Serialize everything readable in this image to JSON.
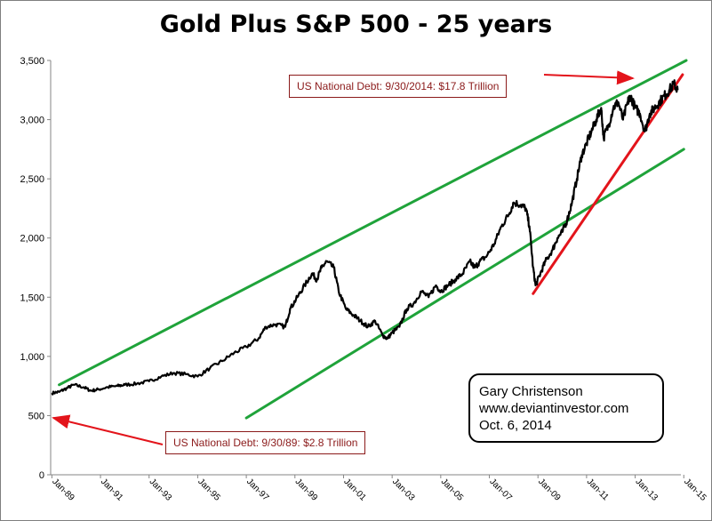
{
  "chart_data": {
    "type": "line",
    "title": "Gold Plus S&P 500 - 25 years",
    "xlabel": "",
    "ylabel": "",
    "ylim": [
      0,
      3500
    ],
    "xlim": [
      1988.95,
      2015.1
    ],
    "yticks": [
      0,
      500,
      1000,
      1500,
      2000,
      2500,
      3000,
      3500
    ],
    "ytick_labels": [
      "0",
      "500",
      "1,000",
      "1,500",
      "2,000",
      "2,500",
      "3,000",
      "3,500"
    ],
    "xticks": [
      "Jan-89",
      "Jan-91",
      "Jan-93",
      "Jan-95",
      "Jan-97",
      "Jan-99",
      "Jan-01",
      "Jan-03",
      "Jan-05",
      "Jan-07",
      "Jan-09",
      "Jan-11",
      "Jan-13",
      "Jan-15"
    ],
    "grid": false,
    "legend": "none",
    "series": [
      {
        "color": "#000000",
        "x": [
          1989.0,
          1989.3,
          1989.6,
          1989.9,
          1990.3,
          1990.6,
          1990.9,
          1991.3,
          1991.7,
          1992.0,
          1992.5,
          1993.0,
          1993.5,
          1994.0,
          1994.5,
          1995.0,
          1995.5,
          1996.0,
          1996.5,
          1997.0,
          1997.5,
          1997.8,
          1998.2,
          1998.6,
          1998.8,
          1999.1,
          1999.4,
          1999.7,
          1999.9,
          2000.1,
          2000.3,
          2000.6,
          2000.8,
          2001.1,
          2001.4,
          2001.7,
          2002.0,
          2002.3,
          2002.6,
          2002.8,
          2003.0,
          2003.3,
          2003.6,
          2003.9,
          2004.2,
          2004.5,
          2004.8,
          2005.0,
          2005.3,
          2005.6,
          2005.9,
          2006.2,
          2006.4,
          2006.6,
          2006.9,
          2007.2,
          2007.5,
          2007.8,
          2008.0,
          2008.3,
          2008.5,
          2008.65,
          2008.8,
          2008.9,
          2009.1,
          2009.3,
          2009.6,
          2009.8,
          2010.0,
          2010.2,
          2010.4,
          2010.6,
          2010.8,
          2011.0,
          2011.2,
          2011.4,
          2011.6,
          2011.7,
          2011.9,
          2012.1,
          2012.3,
          2012.5,
          2012.7,
          2012.8,
          2013.0,
          2013.2,
          2013.4,
          2013.6,
          2013.8,
          2014.0,
          2014.2,
          2014.4,
          2014.6,
          2014.75
        ],
        "values": [
          690,
          700,
          730,
          760,
          740,
          710,
          720,
          740,
          750,
          760,
          770,
          790,
          830,
          860,
          850,
          830,
          900,
          960,
          1030,
          1080,
          1150,
          1250,
          1270,
          1250,
          1400,
          1500,
          1600,
          1700,
          1650,
          1750,
          1800,
          1750,
          1550,
          1400,
          1350,
          1300,
          1250,
          1300,
          1180,
          1150,
          1200,
          1250,
          1400,
          1450,
          1550,
          1500,
          1600,
          1550,
          1600,
          1650,
          1700,
          1800,
          1750,
          1800,
          1850,
          1950,
          2100,
          2200,
          2300,
          2280,
          2250,
          2100,
          1750,
          1600,
          1700,
          1800,
          1900,
          2000,
          2050,
          2150,
          2300,
          2500,
          2700,
          2800,
          2900,
          3000,
          3100,
          2850,
          2950,
          3100,
          3150,
          3000,
          3150,
          3200,
          3100,
          3050,
          2900,
          3050,
          3100,
          3150,
          3200,
          3250,
          3300,
          3250
        ]
      }
    ],
    "trend_lines": [
      {
        "color": "#1fa33a",
        "x": [
          1989.3,
          2015.1
        ],
        "values": [
          760,
          3500
        ]
      },
      {
        "color": "#1fa33a",
        "x": [
          1997.0,
          2015.0
        ],
        "values": [
          480,
          2750
        ]
      },
      {
        "color": "#e3141b",
        "x": [
          2008.8,
          2014.95
        ],
        "values": [
          1530,
          3380
        ]
      }
    ],
    "annotations": [
      {
        "text": "US National Debt:  9/30/2014:  $17.8 Trillion",
        "color": "#8b1a1a"
      },
      {
        "text": "US National Debt:  9/30/89:  $2.8 Trillion",
        "color": "#8b1a1a"
      }
    ],
    "credit_lines": [
      "Gary Christenson",
      "www.deviantinvestor.com",
      "Oct. 6, 2014"
    ]
  }
}
